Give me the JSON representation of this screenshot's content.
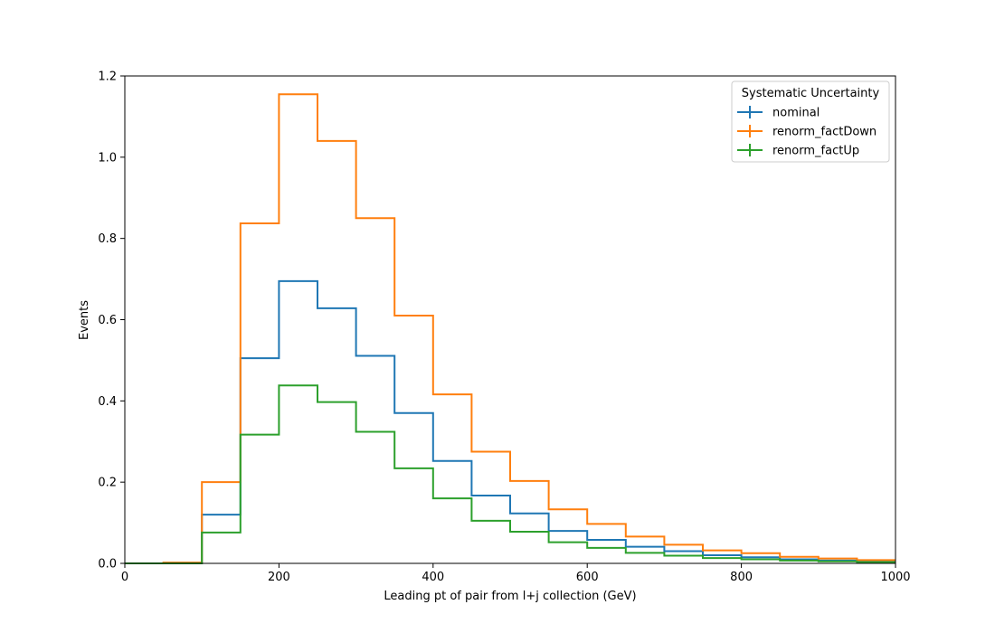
{
  "chart_data": {
    "type": "line",
    "drawstyle": "steps",
    "title": "",
    "xlabel": "Leading pt of pair from l+j collection (GeV)",
    "ylabel": "Events",
    "xlim": [
      0,
      1000
    ],
    "ylim": [
      0,
      1.2
    ],
    "grid": false,
    "x_ticks": [
      0,
      200,
      400,
      600,
      800,
      1000
    ],
    "y_ticks": [
      0.0,
      0.2,
      0.4,
      0.6,
      0.8,
      1.0,
      1.2
    ],
    "x_tick_labels": [
      "0",
      "200",
      "400",
      "600",
      "800",
      "1000"
    ],
    "y_tick_labels": [
      "0.0",
      "0.2",
      "0.4",
      "0.6",
      "0.8",
      "1.0",
      "1.2"
    ],
    "bin_edges": [
      0,
      50,
      100,
      150,
      200,
      250,
      300,
      350,
      400,
      450,
      500,
      550,
      600,
      650,
      700,
      750,
      800,
      850,
      900,
      950,
      1000
    ],
    "legend": {
      "title": "Systematic Uncertainty",
      "position": "top-right"
    },
    "series": [
      {
        "name": "nominal",
        "color": "#1f77b4",
        "values": [
          0,
          0,
          0.12,
          0.505,
          0.695,
          0.628,
          0.511,
          0.37,
          0.252,
          0.167,
          0.123,
          0.08,
          0.058,
          0.041,
          0.03,
          0.02,
          0.015,
          0.01,
          0.007,
          0.005
        ]
      },
      {
        "name": "renorm_factDown",
        "color": "#ff7f0e",
        "values": [
          0,
          0.002,
          0.2,
          0.837,
          1.155,
          1.04,
          0.85,
          0.61,
          0.416,
          0.275,
          0.203,
          0.133,
          0.097,
          0.066,
          0.046,
          0.032,
          0.025,
          0.016,
          0.012,
          0.008
        ]
      },
      {
        "name": "renorm_factUp",
        "color": "#2ca02c",
        "values": [
          0,
          0,
          0.076,
          0.317,
          0.438,
          0.397,
          0.324,
          0.234,
          0.16,
          0.105,
          0.078,
          0.052,
          0.038,
          0.026,
          0.019,
          0.013,
          0.01,
          0.007,
          0.005,
          0.003
        ]
      }
    ]
  }
}
